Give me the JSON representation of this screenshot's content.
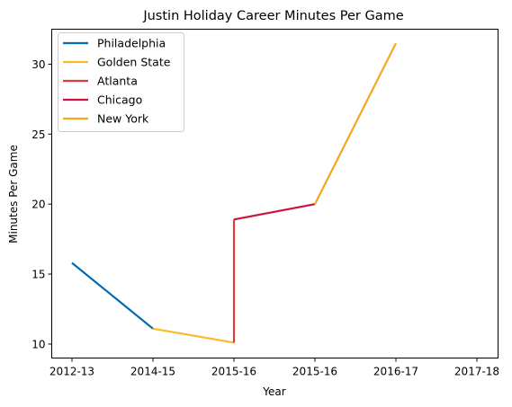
{
  "chart_data": {
    "type": "line",
    "title": "Justin Holiday Career Minutes Per Game",
    "xlabel": "Year",
    "ylabel": "Minutes Per Game",
    "categories": [
      "2012-13",
      "2014-15",
      "2015-16",
      "2015-16",
      "2016-17",
      "2017-18"
    ],
    "ylim": [
      9.0,
      32.5
    ],
    "yticks": [
      10,
      15,
      20,
      25,
      30
    ],
    "grid": false,
    "legend_position": "top-left",
    "series": [
      {
        "name": "Philadelphia",
        "color": "#0069b4",
        "points": [
          [
            0,
            15.8
          ],
          [
            1,
            11.1
          ]
        ]
      },
      {
        "name": "Golden State",
        "color": "#fdb927",
        "points": [
          [
            1,
            11.1
          ],
          [
            2,
            10.1
          ]
        ]
      },
      {
        "name": "Atlanta",
        "color": "#e03a3e",
        "points": [
          [
            2,
            10.1
          ],
          [
            2,
            18.9
          ]
        ]
      },
      {
        "name": "Chicago",
        "color": "#ce1141",
        "points": [
          [
            2,
            18.9
          ],
          [
            3,
            20.0
          ]
        ]
      },
      {
        "name": "New York",
        "color": "#f5a623",
        "points": [
          [
            3,
            20.0
          ],
          [
            4,
            31.5
          ]
        ]
      }
    ]
  }
}
